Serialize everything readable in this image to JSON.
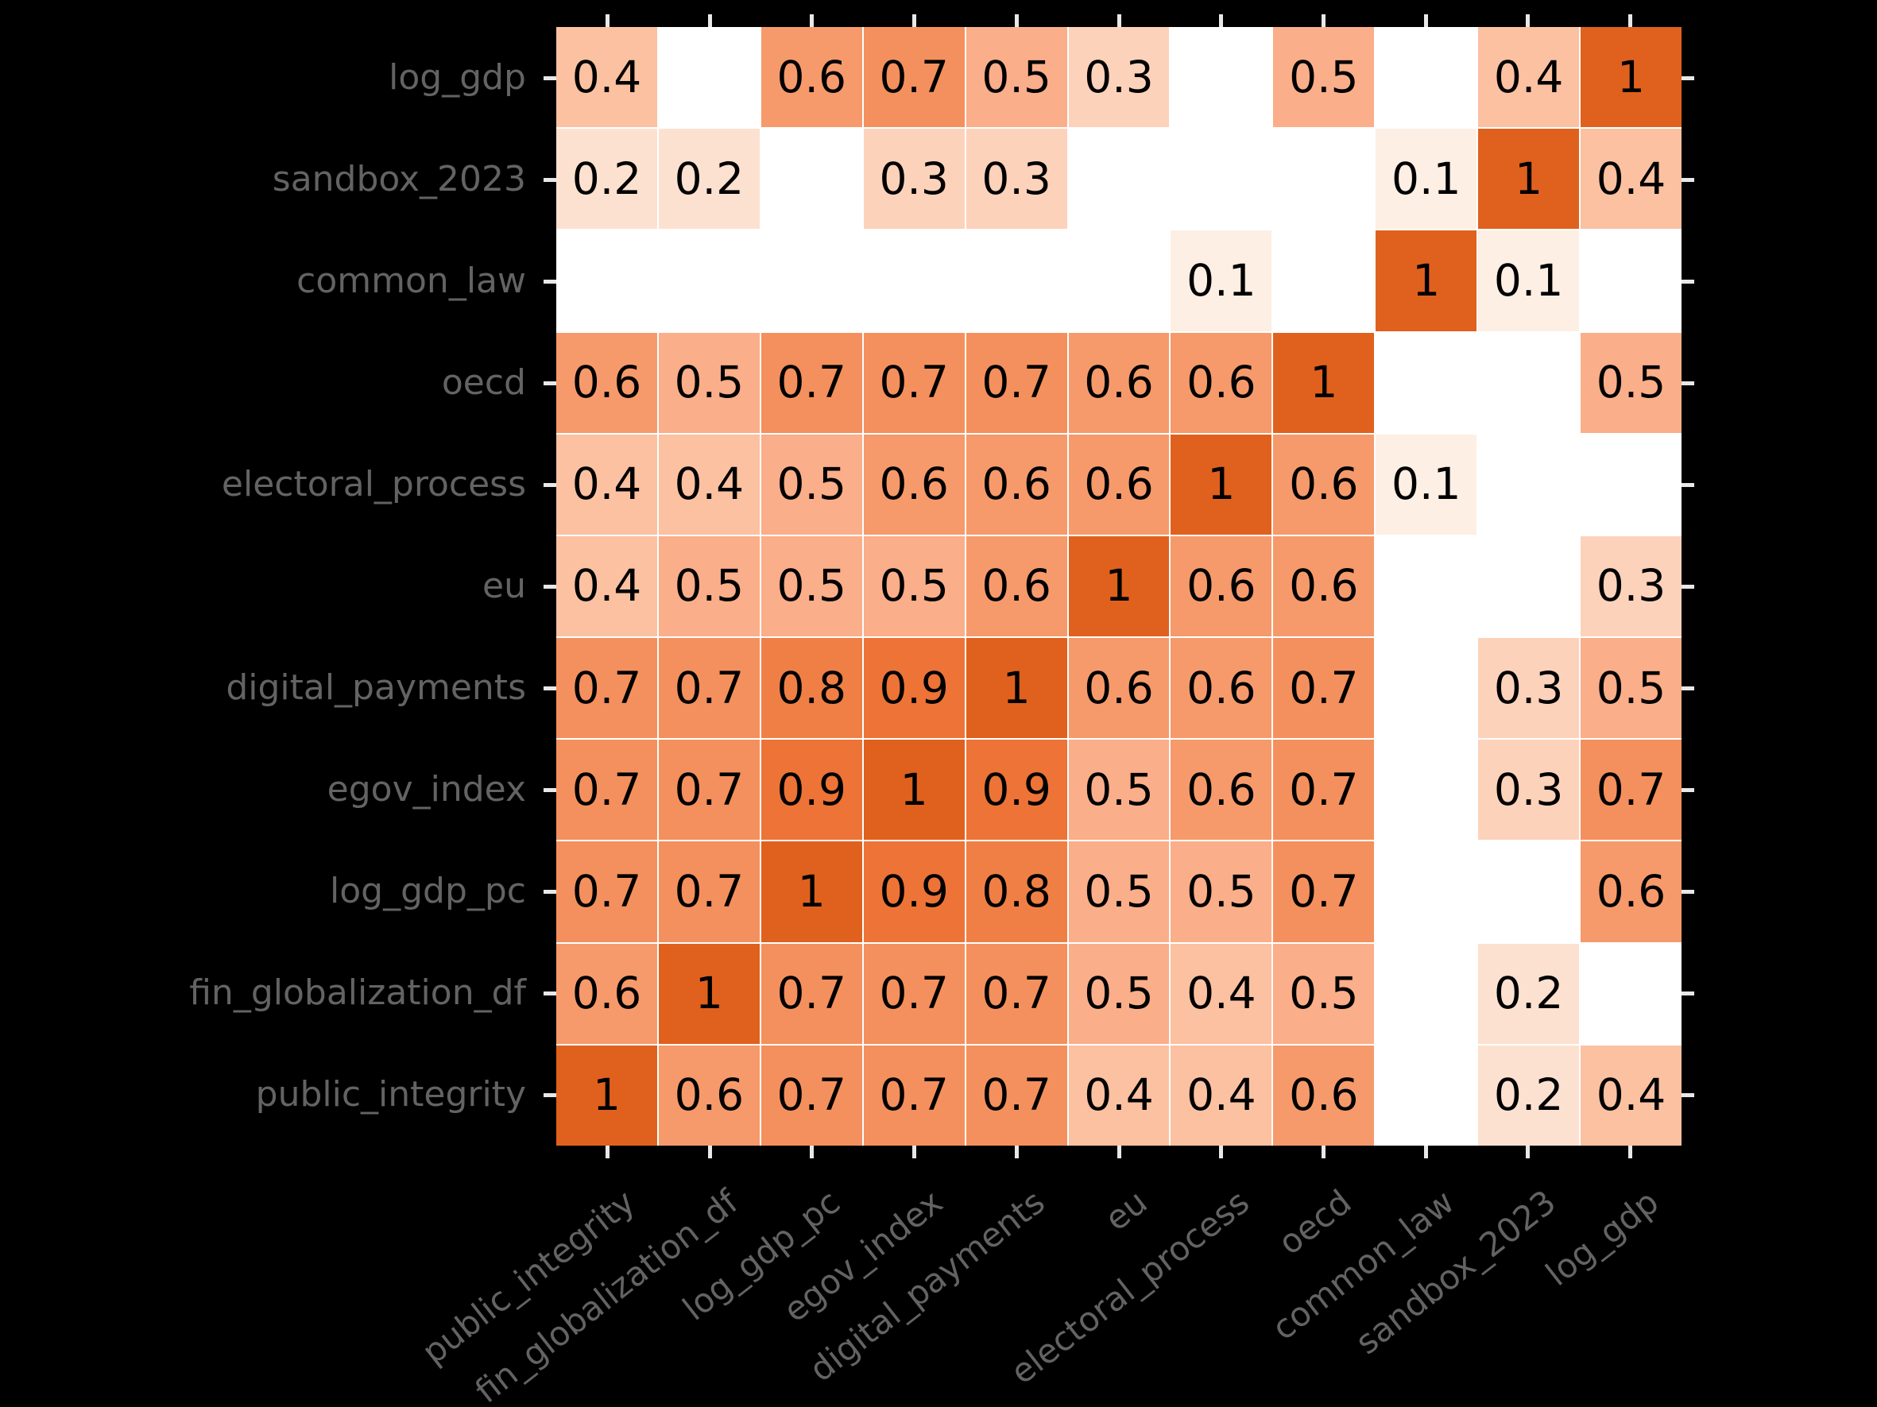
{
  "figure": {
    "background": "#000000",
    "plot_background": "#ffffff",
    "axis_label_color": "#636363",
    "tick_color": "#e8e8e8",
    "cell_gap_color": "#ffffff"
  },
  "chart_data": {
    "type": "heatmap",
    "title": "",
    "x_categories": [
      "public_integrity",
      "fin_globalization_df",
      "log_gdp_pc",
      "egov_index",
      "digital_payments",
      "eu",
      "electoral_process",
      "oecd",
      "common_law",
      "sandbox_2023",
      "log_gdp"
    ],
    "y_categories": [
      "log_gdp",
      "sandbox_2023",
      "common_law",
      "oecd",
      "electoral_process",
      "eu",
      "digital_payments",
      "egov_index",
      "log_gdp_pc",
      "fin_globalization_df",
      "public_integrity"
    ],
    "matrix": [
      [
        0.4,
        null,
        0.6,
        0.7,
        0.5,
        0.3,
        null,
        0.5,
        null,
        0.4,
        1
      ],
      [
        0.2,
        0.2,
        null,
        0.3,
        0.3,
        null,
        null,
        null,
        0.1,
        1,
        0.4
      ],
      [
        null,
        null,
        null,
        null,
        null,
        null,
        0.1,
        null,
        1,
        0.1,
        null
      ],
      [
        0.6,
        0.5,
        0.7,
        0.7,
        0.7,
        0.6,
        0.6,
        1,
        null,
        null,
        0.5
      ],
      [
        0.4,
        0.4,
        0.5,
        0.6,
        0.6,
        0.6,
        1,
        0.6,
        0.1,
        null,
        null
      ],
      [
        0.4,
        0.5,
        0.5,
        0.5,
        0.6,
        1,
        0.6,
        0.6,
        null,
        null,
        0.3
      ],
      [
        0.7,
        0.7,
        0.8,
        0.9,
        1,
        0.6,
        0.6,
        0.7,
        null,
        0.3,
        0.5
      ],
      [
        0.7,
        0.7,
        0.9,
        1,
        0.9,
        0.5,
        0.6,
        0.7,
        null,
        0.3,
        0.7
      ],
      [
        0.7,
        0.7,
        1,
        0.9,
        0.8,
        0.5,
        0.5,
        0.7,
        null,
        null,
        0.6
      ],
      [
        0.6,
        1,
        0.7,
        0.7,
        0.7,
        0.5,
        0.4,
        0.5,
        null,
        0.2,
        null
      ],
      [
        1,
        0.6,
        0.7,
        0.7,
        0.7,
        0.4,
        0.4,
        0.6,
        null,
        0.2,
        0.4
      ]
    ],
    "value_range": [
      0,
      1
    ],
    "colormap": "Oranges",
    "blank_cells_rendered_as": "white",
    "cell_text_color": "#000000",
    "color_scale": {
      "0.1": "#fdefe4",
      "0.2": "#fde1d0",
      "0.3": "#fdd2ba",
      "0.4": "#fbc1a1",
      "0.5": "#faae89",
      "0.6": "#f69a6b",
      "0.7": "#f4905d",
      "0.8": "#f07f46",
      "0.9": "#ed7337",
      "1.0": "#e0611d"
    },
    "grid": "white seams between cells",
    "legend_position": "none"
  }
}
